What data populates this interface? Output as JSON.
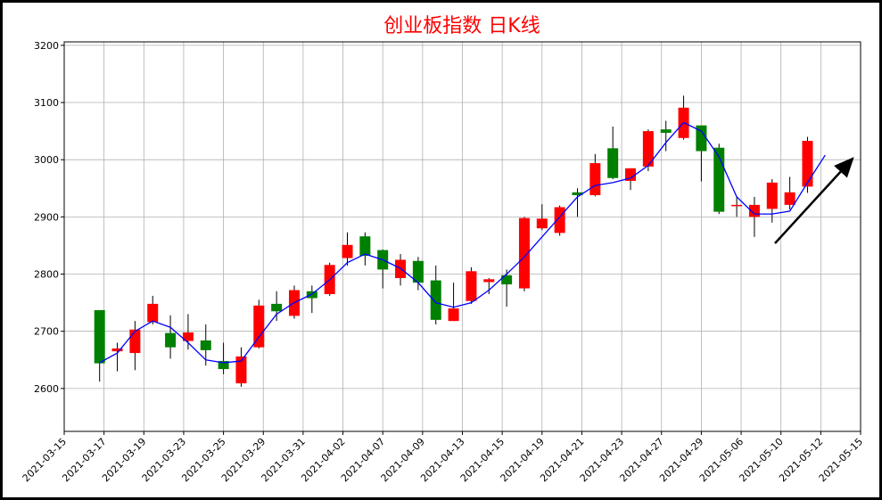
{
  "chart_data": {
    "type": "candlestick",
    "title": "创业板指数 日K线",
    "x": [
      0,
      1,
      2,
      3,
      4,
      5,
      6,
      7,
      8,
      9,
      10,
      11,
      12,
      13,
      14,
      15,
      16,
      17,
      18,
      19,
      20,
      21,
      22,
      23,
      24,
      25,
      26,
      27,
      28,
      29,
      30,
      31,
      32,
      33,
      34,
      35,
      36,
      37,
      38,
      39,
      40
    ],
    "open": [
      2737,
      2665,
      2662,
      2716,
      2697,
      2683,
      2684,
      2648,
      2609,
      2672,
      2748,
      2727,
      2770,
      2765,
      2828,
      2866,
      2842,
      2793,
      2823,
      2789,
      2718,
      2753,
      2786,
      2798,
      2775,
      2880,
      2872,
      2943,
      2938,
      3020,
      2963,
      2988,
      3053,
      3038,
      3060,
      3021,
      2920,
      2900,
      2914,
      2921,
      2953
    ],
    "high": [
      2737,
      2680,
      2718,
      2762,
      2728,
      2730,
      2712,
      2680,
      2672,
      2755,
      2770,
      2780,
      2780,
      2820,
      2873,
      2873,
      2843,
      2835,
      2830,
      2815,
      2785,
      2812,
      2793,
      2808,
      2900,
      2922,
      2920,
      2950,
      3010,
      3058,
      2985,
      3053,
      3068,
      3112,
      3060,
      3028,
      2935,
      2935,
      2966,
      2970,
      3040
    ],
    "low": [
      2612,
      2630,
      2632,
      2712,
      2652,
      2668,
      2640,
      2625,
      2603,
      2670,
      2718,
      2722,
      2732,
      2762,
      2815,
      2815,
      2775,
      2780,
      2772,
      2712,
      2718,
      2748,
      2765,
      2743,
      2770,
      2877,
      2867,
      2900,
      2936,
      2966,
      2947,
      2980,
      3015,
      3035,
      2962,
      2905,
      2900,
      2865,
      2890,
      2913,
      2942
    ],
    "close": [
      2644,
      2670,
      2703,
      2748,
      2672,
      2698,
      2667,
      2634,
      2656,
      2745,
      2735,
      2772,
      2758,
      2816,
      2851,
      2832,
      2808,
      2825,
      2785,
      2720,
      2740,
      2805,
      2791,
      2782,
      2898,
      2897,
      2917,
      2938,
      2994,
      2968,
      2985,
      3050,
      3047,
      3091,
      3015,
      2909,
      2921,
      2921,
      2960,
      2943,
      3033
    ],
    "up_color": "#ff0000",
    "down_color": "#008000",
    "lines": [
      {
        "color": "#0000ff",
        "x": [
          0,
          1,
          2,
          3,
          4,
          5,
          6,
          7,
          8,
          9,
          10,
          11,
          12,
          13,
          14,
          15,
          16,
          17,
          18,
          19,
          20,
          21,
          22,
          23,
          24,
          25,
          26,
          27,
          28,
          29,
          30,
          31,
          32,
          33,
          34,
          35,
          36,
          37,
          38,
          39,
          40,
          41
        ],
        "values": [
          2645,
          2662,
          2700,
          2718,
          2707,
          2680,
          2650,
          2645,
          2648,
          2690,
          2730,
          2750,
          2765,
          2790,
          2820,
          2835,
          2825,
          2810,
          2785,
          2750,
          2742,
          2750,
          2772,
          2800,
          2830,
          2865,
          2900,
          2935,
          2955,
          2960,
          2968,
          2990,
          3030,
          3065,
          3050,
          3005,
          2935,
          2905,
          2905,
          2910,
          2960,
          3008
        ]
      }
    ],
    "xlim": [
      -2,
      43
    ],
    "xticks": [
      {
        "value": -2,
        "label": "2021-03-15"
      },
      {
        "value": 0.25,
        "label": "2021-03-17"
      },
      {
        "value": 2.5,
        "label": "2021-03-19"
      },
      {
        "value": 4.75,
        "label": "2021-03-23"
      },
      {
        "value": 7,
        "label": "2021-03-25"
      },
      {
        "value": 9.25,
        "label": "2021-03-29"
      },
      {
        "value": 11.5,
        "label": "2021-03-31"
      },
      {
        "value": 13.75,
        "label": "2021-04-02"
      },
      {
        "value": 16,
        "label": "2021-04-07"
      },
      {
        "value": 18.25,
        "label": "2021-04-09"
      },
      {
        "value": 20.5,
        "label": "2021-04-13"
      },
      {
        "value": 22.75,
        "label": "2021-04-15"
      },
      {
        "value": 25,
        "label": "2021-04-19"
      },
      {
        "value": 27.25,
        "label": "2021-04-21"
      },
      {
        "value": 29.5,
        "label": "2021-04-23"
      },
      {
        "value": 31.75,
        "label": "2021-04-27"
      },
      {
        "value": 34,
        "label": "2021-04-29"
      },
      {
        "value": 36.25,
        "label": "2021-05-06"
      },
      {
        "value": 38.5,
        "label": "2021-05-10"
      },
      {
        "value": 40.75,
        "label": "2021-05-12"
      },
      {
        "value": 43,
        "label": "2021-05-15"
      }
    ],
    "ylim": [
      2525,
      3206
    ],
    "yticks": [
      2600,
      2700,
      2800,
      2900,
      3000,
      3100,
      3200
    ],
    "grid": true
  }
}
